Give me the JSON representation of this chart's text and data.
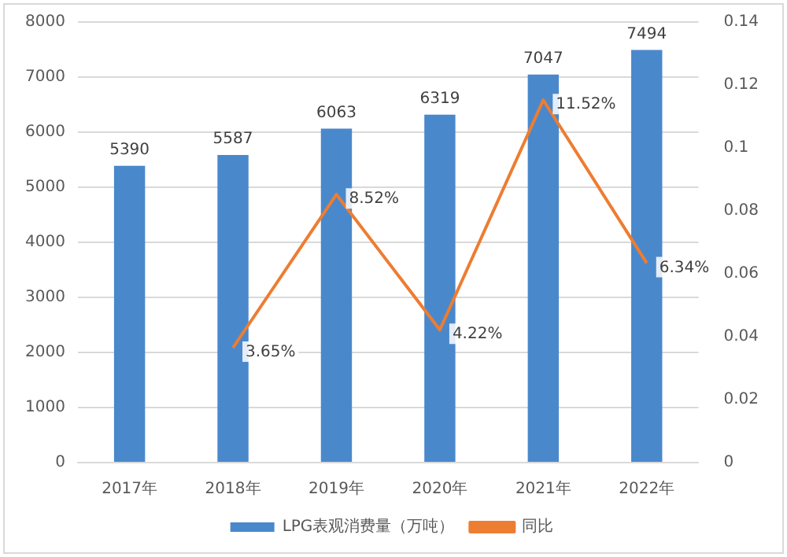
{
  "chart_data": {
    "type": "bar",
    "categories": [
      "2017年",
      "2018年",
      "2019年",
      "2020年",
      "2021年",
      "2022年"
    ],
    "series": [
      {
        "name": "LPG表观消费量（万吨）",
        "color": "#4a88cc",
        "values": [
          5390,
          5587,
          6063,
          6319,
          7047,
          7494
        ],
        "value_labels": [
          "5390",
          "5587",
          "6063",
          "6319",
          "7047",
          "7494"
        ]
      },
      {
        "name": "同比",
        "type": "line",
        "axis": "y2",
        "color": "#ed7d31",
        "values": [
          null,
          0.0365,
          0.0852,
          0.0422,
          0.1152,
          0.0634
        ],
        "value_labels": [
          null,
          "3.65%",
          "8.52%",
          "4.22%",
          "11.52%",
          "6.34%"
        ]
      }
    ],
    "ylim": [
      0,
      8000
    ],
    "yticks": [
      0,
      1000,
      2000,
      3000,
      4000,
      5000,
      6000,
      7000,
      8000
    ],
    "y2lim": [
      0,
      0.14
    ],
    "y2ticks": [
      0,
      0.02,
      0.04,
      0.06,
      0.08,
      0.1,
      0.12,
      0.14
    ],
    "grid": "y",
    "legend": "bottom",
    "marker": "none",
    "line_style": "solid"
  }
}
